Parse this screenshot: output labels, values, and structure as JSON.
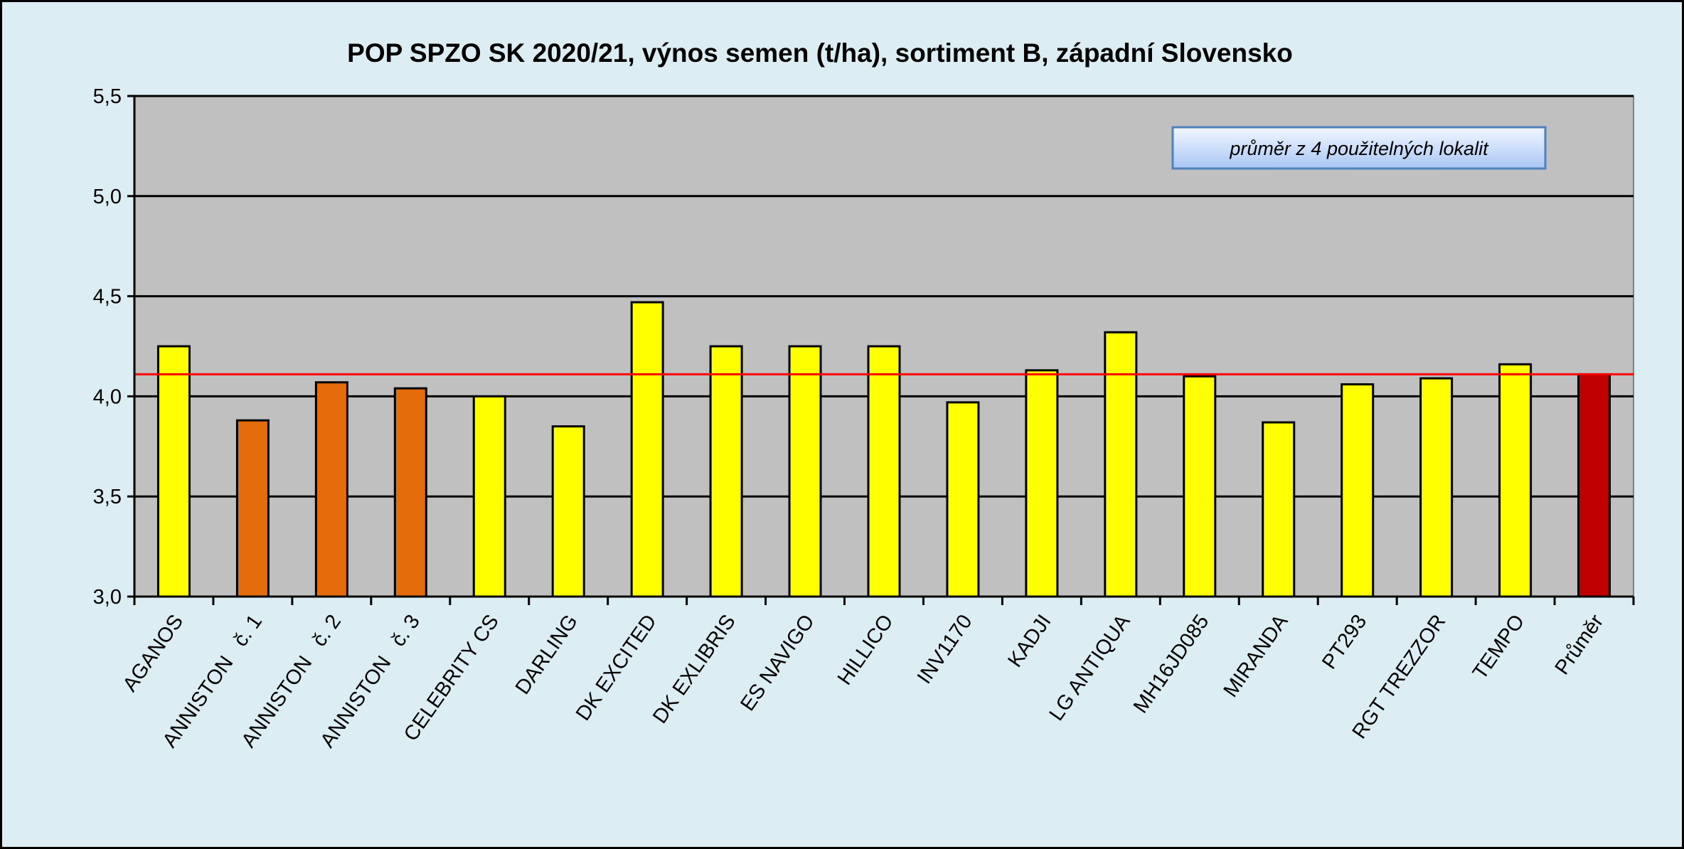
{
  "chart_data": {
    "type": "bar",
    "title": "POP SPZO SK 2020/21, výnos semen (t/ha), sortiment B, západní Slovensko",
    "xlabel": "",
    "ylabel": "",
    "ylim": [
      3.0,
      5.5
    ],
    "yticks": [
      3.0,
      3.5,
      4.0,
      4.5,
      5.0,
      5.5
    ],
    "ytick_labels": [
      "3,0",
      "3,5",
      "4,0",
      "4,5",
      "5,0",
      "5,5"
    ],
    "grid": true,
    "categories": [
      "AGANOS",
      "ANNISTON   č. 1",
      "ANNISTON   č. 2",
      "ANNISTON   č. 3",
      "CELEBRITY CS",
      "DARLING",
      "DK EXCITED",
      "DK EXLIBRIS",
      "ES NAVIGO",
      "HILLICO",
      "INV1170",
      "KADJI",
      "LG ANTIQUA",
      "MH16JD085",
      "MIRANDA",
      "PT293",
      "RGT TREZZOR",
      "TEMPO",
      "Průměr"
    ],
    "values": [
      4.25,
      3.88,
      4.07,
      4.04,
      4.0,
      3.85,
      4.47,
      4.25,
      4.25,
      4.25,
      3.97,
      4.13,
      4.32,
      4.1,
      3.87,
      4.06,
      4.09,
      4.16,
      4.11
    ],
    "bar_colors": [
      "#ffff00",
      "#e46c0a",
      "#e46c0a",
      "#e46c0a",
      "#ffff00",
      "#ffff00",
      "#ffff00",
      "#ffff00",
      "#ffff00",
      "#ffff00",
      "#ffff00",
      "#ffff00",
      "#ffff00",
      "#ffff00",
      "#ffff00",
      "#ffff00",
      "#ffff00",
      "#ffff00",
      "#c00000"
    ],
    "reference_line": {
      "value": 4.11,
      "color": "#ff0000"
    },
    "annotation": "průměr z 4 použitelných lokalit",
    "plot_background": "#c0c0c0",
    "page_background": "#dcedf3"
  }
}
